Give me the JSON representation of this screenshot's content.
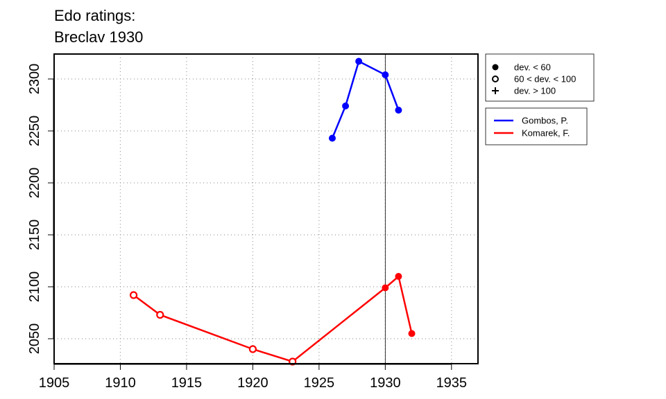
{
  "chart_data": {
    "type": "line",
    "title": [
      "Edo ratings:",
      "Breclav 1930"
    ],
    "xlim": [
      1905,
      1937
    ],
    "ylim": [
      2026,
      2324
    ],
    "x_ticks": [
      1905,
      1910,
      1915,
      1920,
      1925,
      1930,
      1935
    ],
    "y_ticks": [
      2050,
      2100,
      2150,
      2200,
      2250,
      2300
    ],
    "grid": "dotted",
    "vline_x": 1930,
    "series": [
      {
        "name": "Gombos, P.",
        "color": "#0000ff",
        "points": [
          {
            "x": 1926,
            "y": 2243,
            "marker": "dev. < 60"
          },
          {
            "x": 1927,
            "y": 2274,
            "marker": "dev. < 60"
          },
          {
            "x": 1928,
            "y": 2317,
            "marker": "dev. < 60"
          },
          {
            "x": 1930,
            "y": 2304,
            "marker": "dev. < 60"
          },
          {
            "x": 1931,
            "y": 2270,
            "marker": "dev. < 60"
          }
        ]
      },
      {
        "name": "Komarek, F.",
        "color": "#ff0000",
        "points": [
          {
            "x": 1911,
            "y": 2092,
            "marker": "60 < dev. < 100"
          },
          {
            "x": 1913,
            "y": 2073,
            "marker": "60 < dev. < 100"
          },
          {
            "x": 1920,
            "y": 2040,
            "marker": "60 < dev. < 100"
          },
          {
            "x": 1923,
            "y": 2028,
            "marker": "60 < dev. < 100"
          },
          {
            "x": 1930,
            "y": 2099,
            "marker": "dev. < 60"
          },
          {
            "x": 1931,
            "y": 2110,
            "marker": "dev. < 60"
          },
          {
            "x": 1932,
            "y": 2055,
            "marker": "dev. < 60"
          }
        ]
      }
    ],
    "marker_legend": [
      {
        "label": "dev. < 60",
        "symbol": "filled-circle"
      },
      {
        "label": "60 < dev. < 100",
        "symbol": "open-circle"
      },
      {
        "label": "dev. > 100",
        "symbol": "plus"
      }
    ],
    "legend_position": "outside-right-top"
  }
}
